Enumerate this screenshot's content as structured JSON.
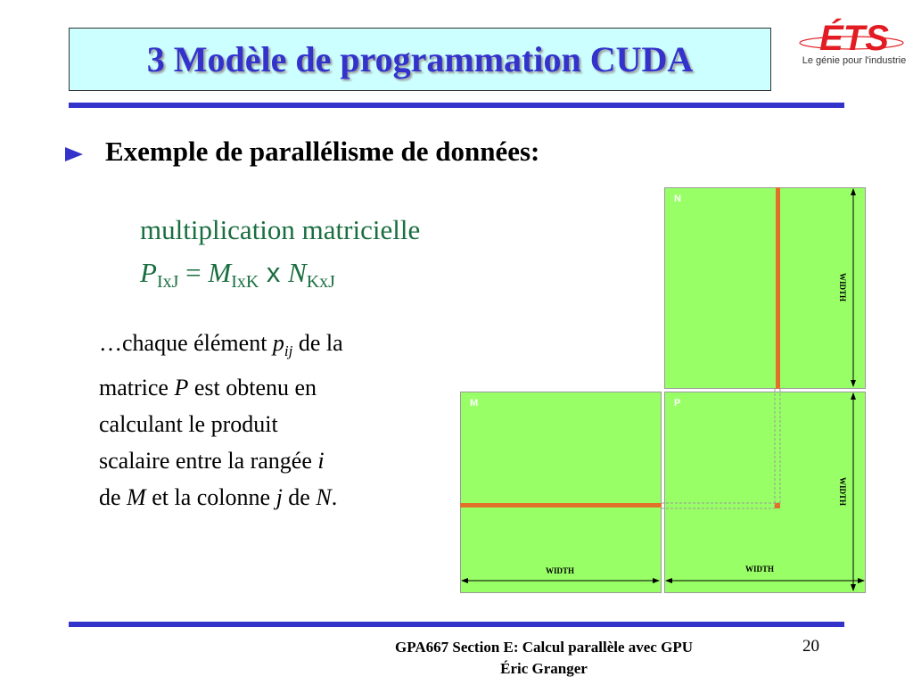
{
  "title": "3 Modèle de programmation CUDA",
  "logo": {
    "wordmark": "ÉTS",
    "tagline": "Le génie pour l'industrie",
    "color": "#e31b23"
  },
  "heading": "Exemple de parallélisme de données:",
  "subtitle": "multiplication matricielle",
  "formula": {
    "P": "P",
    "P_sub": "IxJ",
    "eq": " = ",
    "M": "M",
    "M_sub": "IxK",
    "times": " x ",
    "N": "N",
    "N_sub": "KxJ"
  },
  "body": {
    "l1a": "…chaque élément ",
    "pij": "p",
    "ij": "ij",
    "l1b": " de la",
    "l2a": "matrice ",
    "P": "P",
    "l2b": " est obtenu en",
    "l3": "calculant le produit",
    "l4a": "scalaire entre la rangée ",
    "i": "i",
    "l5a": "de ",
    "M": "M",
    "l5b": " et la colonne ",
    "j": "j",
    "l5c": " de ",
    "N": "N",
    "l5d": "."
  },
  "diagram": {
    "matrix_N": "N",
    "matrix_M": "M",
    "matrix_P": "P",
    "width_label": "WIDTH",
    "fill_color": "#99ff66",
    "highlight_color": "#e0702a"
  },
  "footer": {
    "line1": "GPA667  Section E: Calcul parallèle avec GPU",
    "line2": "Éric Granger"
  },
  "page_number": "20"
}
